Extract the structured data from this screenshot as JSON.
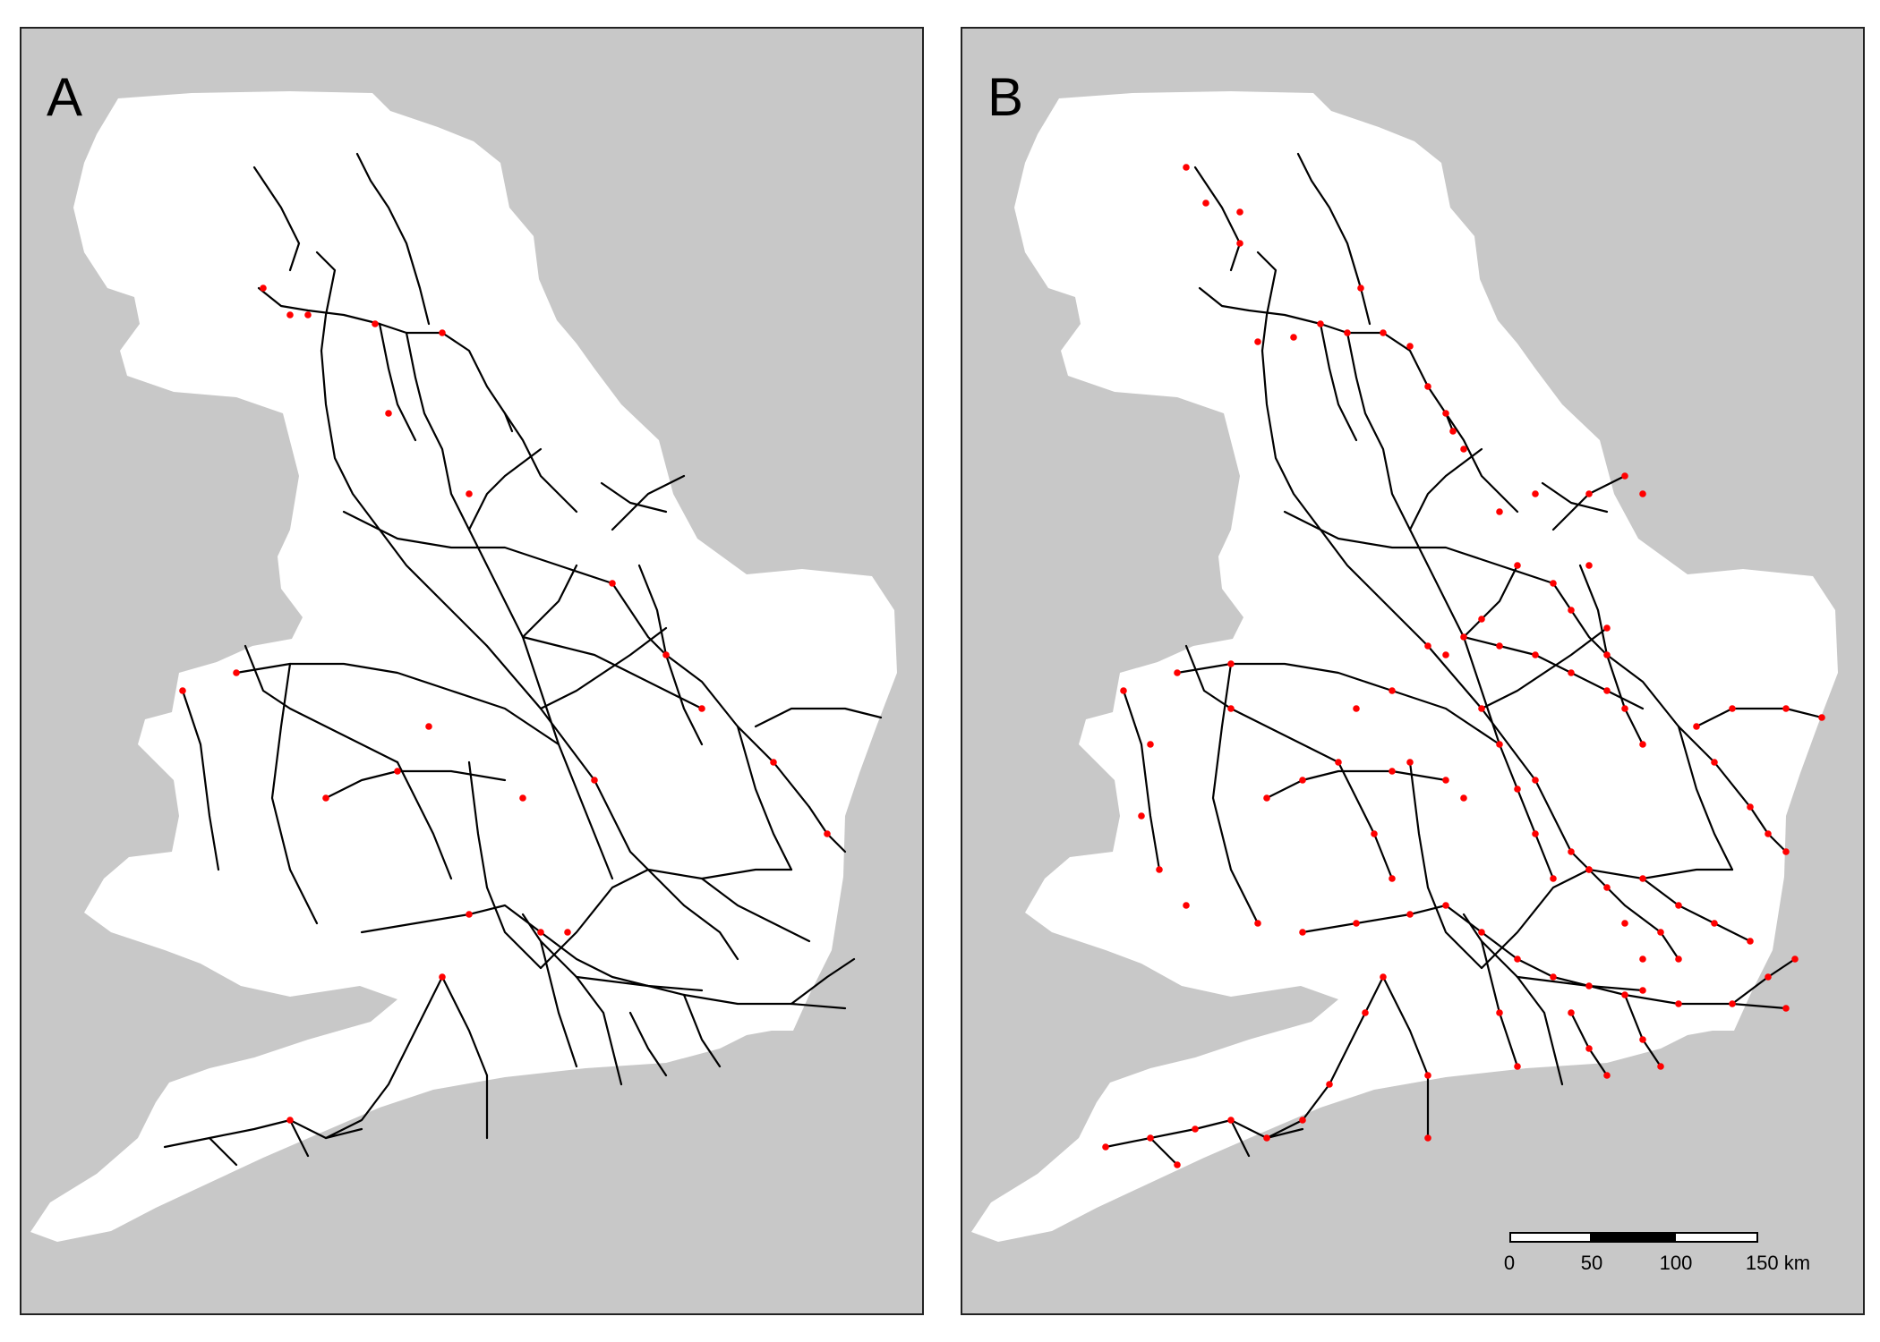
{
  "colors": {
    "sea": "#c8c8c8",
    "land": "#ffffff",
    "rail": "#000000",
    "point": "#ff0000",
    "border": "#222222"
  },
  "panels": [
    {
      "label": "A",
      "markers": "sparse"
    },
    {
      "label": "B",
      "markers": "dense"
    }
  ],
  "scale_bar": {
    "ticks": [
      "0",
      "50",
      "100",
      "150 km"
    ],
    "segment_fills": [
      "#ffffff",
      "#000000",
      "#ffffff"
    ]
  }
}
